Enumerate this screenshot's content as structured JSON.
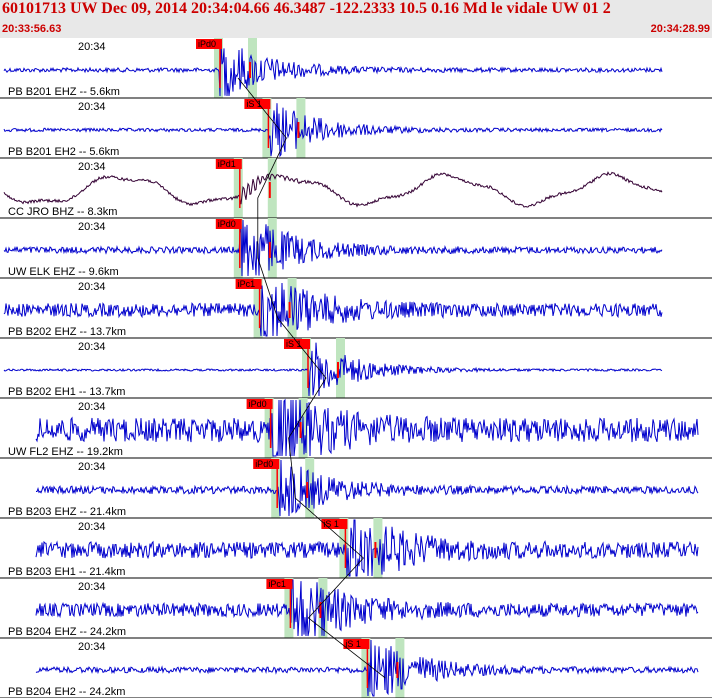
{
  "header": {
    "title": "60101713 UW Dec 09, 2014 20:34:04.66   46.3487 -122.2333 10.5 0.16 Md le vidale UW 01   2",
    "start_time": "20:33:56.63",
    "end_time": "20:34:28.99"
  },
  "colors": {
    "header_bg": "#e8e8e8",
    "title": "#cc0000",
    "trace_blue": "#0000cc",
    "trace_dark": "#330033",
    "pick_red": "#ff0000",
    "window_green": "#bfe5bf"
  },
  "channels": [
    {
      "label": "PB B201 EHZ -- 5.6km",
      "time": "20:34",
      "pick": "iPd0",
      "pick_time_s": 8.0,
      "style": "blue",
      "amp": 0.35,
      "noise": 0.1
    },
    {
      "label": "PB B201 EH2 -- 5.6km",
      "time": "20:34",
      "pick": "iS 1",
      "pick_time_s": 10.2,
      "style": "blue",
      "amp": 0.35,
      "noise": 0.08
    },
    {
      "label": "CC JRO BHZ -- 8.3km",
      "time": "20:34",
      "pick": "iPd1",
      "pick_time_s": 8.9,
      "style": "dark",
      "amp": 0.25,
      "noise": 0.05
    },
    {
      "label": "UW ELK EHZ -- 9.6km",
      "time": "20:34",
      "pick": "iPd0",
      "pick_time_s": 8.9,
      "style": "blue",
      "amp": 0.45,
      "noise": 0.12
    },
    {
      "label": "PB B202 EHZ -- 13.7km",
      "time": "20:34",
      "pick": "iPc1",
      "pick_time_s": 9.8,
      "style": "blue",
      "amp": 0.45,
      "noise": 0.25
    },
    {
      "label": "PB B202 EH1 -- 13.7km",
      "time": "20:34",
      "pick": "iS 1",
      "pick_time_s": 12.0,
      "style": "blue",
      "amp": 0.35,
      "noise": 0.05
    },
    {
      "label": "UW FL2 EHZ -- 19.2km",
      "time": "20:34",
      "pick": "iPd0",
      "pick_time_s": 10.3,
      "style": "blue",
      "amp": 0.45,
      "noise": 0.45
    },
    {
      "label": "PB B203 EHZ -- 21.4km",
      "time": "20:34",
      "pick": "iPd0",
      "pick_time_s": 10.6,
      "style": "blue",
      "amp": 0.35,
      "noise": 0.18
    },
    {
      "label": "PB B203 EH1 -- 21.4km",
      "time": "20:34",
      "pick": "iS 1",
      "pick_time_s": 13.7,
      "style": "blue",
      "amp": 0.45,
      "noise": 0.3
    },
    {
      "label": "PB B204 EHZ -- 24.2km",
      "time": "20:34",
      "pick": "iPc1",
      "pick_time_s": 11.2,
      "style": "blue",
      "amp": 0.45,
      "noise": 0.25
    },
    {
      "label": "PB B204 EH2 -- 24.2km",
      "time": "20:34",
      "pick": "iS 1",
      "pick_time_s": 14.7,
      "style": "blue",
      "amp": 0.4,
      "noise": 0.12
    }
  ]
}
